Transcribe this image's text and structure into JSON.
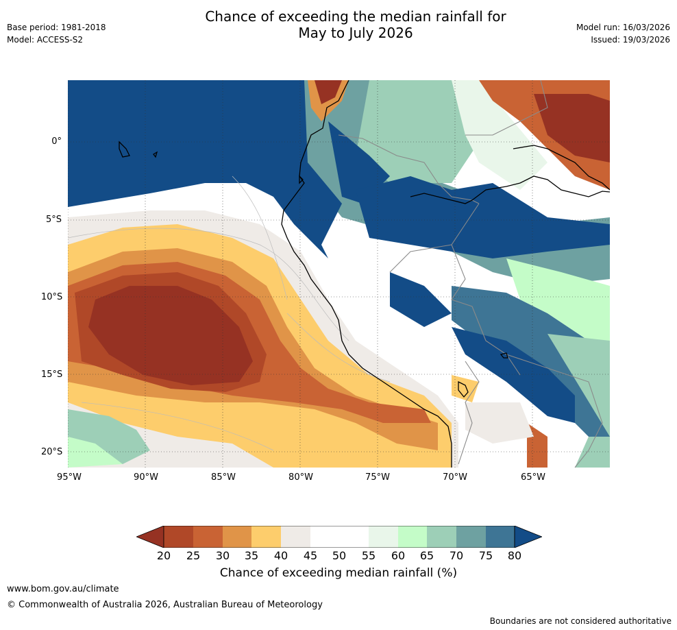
{
  "header": {
    "title_line1": "Chance of exceeding the median rainfall for",
    "title_line2": "May to July 2026",
    "base_period": "Base period: 1981-2018",
    "model": "Model: ACCESS-S2",
    "model_run": "Model run: 16/03/2026",
    "issued": "Issued: 19/03/2026"
  },
  "map": {
    "latitude_labels": [
      "0°",
      "5°S",
      "10°S",
      "15°S",
      "20°S"
    ],
    "longitude_labels": [
      "95°W",
      "90°W",
      "85°W",
      "80°W",
      "75°W",
      "70°W",
      "65°W"
    ]
  },
  "colors": {
    "c20": "#963223",
    "c25": "#b04828",
    "c30": "#c96334",
    "c35": "#e09448",
    "c40": "#fdcd6c",
    "c45": "#efebe7",
    "c50": "#ffffff",
    "c55": "#ffffff",
    "c60": "#e9f6ea",
    "c65": "#c4fcc8",
    "c70": "#9dcfb7",
    "c75": "#6ea1a1",
    "c80": "#3e7595",
    "c85": "#134c87"
  },
  "legend": {
    "ticks": [
      "20",
      "25",
      "30",
      "35",
      "40",
      "45",
      "50",
      "55",
      "60",
      "65",
      "70",
      "75",
      "80"
    ],
    "label": "Chance of exceeding median rainfall (%)"
  },
  "footer": {
    "url": "www.bom.gov.au/climate",
    "copyright": "© Commonwealth of Australia 2026, Australian Bureau of Meteorology",
    "note": "Boundaries are not considered authoritative"
  }
}
